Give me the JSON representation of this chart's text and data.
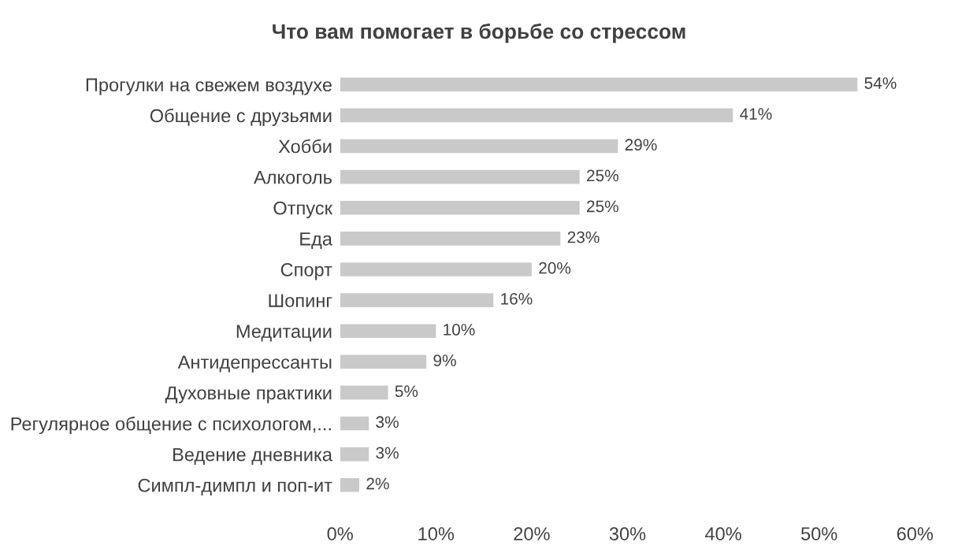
{
  "chart_data": {
    "type": "bar",
    "orientation": "horizontal",
    "title": "Что вам помогает в борьбе со стрессом",
    "categories": [
      "Прогулки на свежем воздухе",
      "Общение с друзьями",
      "Хобби",
      "Алкоголь",
      "Отпуск",
      "Еда",
      "Спорт",
      "Шопинг",
      "Медитации",
      "Антидепрессанты",
      "Духовные практики",
      "Регулярное общение с психологом,...",
      "Ведение дневника",
      "Симпл-димпл и поп-ит"
    ],
    "values": [
      54,
      41,
      29,
      25,
      25,
      23,
      20,
      16,
      10,
      9,
      5,
      3,
      3,
      2
    ],
    "value_labels": [
      "54%",
      "41%",
      "29%",
      "25%",
      "25%",
      "23%",
      "20%",
      "16%",
      "10%",
      "9%",
      "5%",
      "3%",
      "3%",
      "2%"
    ],
    "color": "#c9c9c9",
    "xlim": [
      0,
      60
    ],
    "xticks": [
      {
        "value": 0,
        "label": "0%"
      },
      {
        "value": 10,
        "label": "10%"
      },
      {
        "value": 20,
        "label": "20%"
      },
      {
        "value": 30,
        "label": "30%"
      },
      {
        "value": 40,
        "label": "40%"
      },
      {
        "value": 50,
        "label": "50%"
      },
      {
        "value": 60,
        "label": "60%"
      }
    ],
    "grid": false,
    "legend": false
  }
}
